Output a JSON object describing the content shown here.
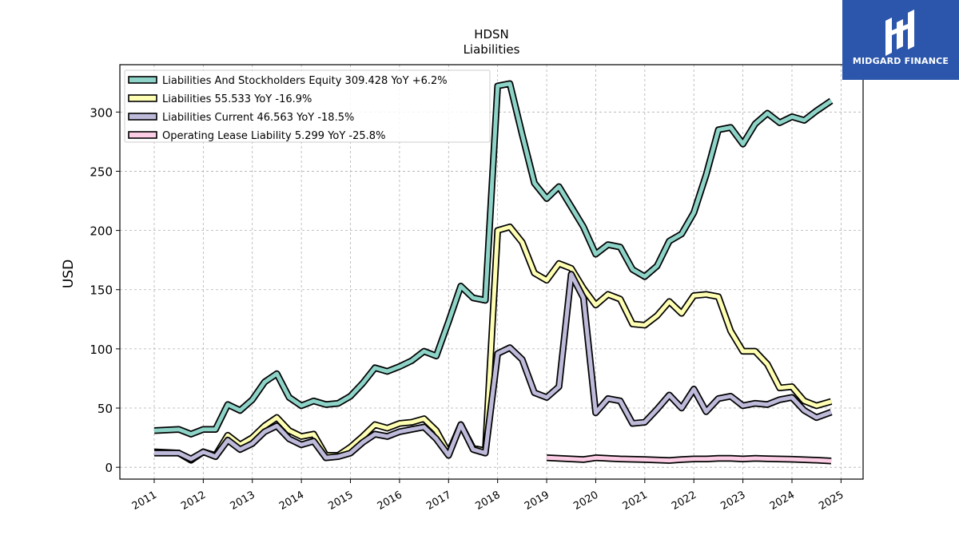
{
  "brand": {
    "name": "MIDGARD FINANCE",
    "color": "#2b56ab"
  },
  "chart_data": {
    "type": "line",
    "title": "HDSN",
    "subtitle": "Liabilities",
    "ylabel": "USD",
    "xlabel": "",
    "ylim": [
      -10,
      340
    ],
    "xlim": [
      2010.3,
      2025.45
    ],
    "yticks": [
      0,
      50,
      100,
      150,
      200,
      250,
      300
    ],
    "xticks": [
      2011,
      2012,
      2013,
      2014,
      2015,
      2016,
      2017,
      2018,
      2019,
      2020,
      2021,
      2022,
      2023,
      2024,
      2025
    ],
    "grid": true,
    "legend_position": "top-left",
    "series": [
      {
        "name": "Liabilities And Stockholders Equity",
        "legend": "Liabilities And Stockholders Equity  309.428 YoY +6.2%",
        "color": "#8dd3c7",
        "points": [
          [
            2011.0,
            31
          ],
          [
            2011.5,
            32
          ],
          [
            2011.75,
            28
          ],
          [
            2012.0,
            32
          ],
          [
            2012.25,
            32
          ],
          [
            2012.5,
            53
          ],
          [
            2012.75,
            48
          ],
          [
            2013.0,
            57
          ],
          [
            2013.25,
            72
          ],
          [
            2013.5,
            79
          ],
          [
            2013.75,
            59
          ],
          [
            2014.0,
            52
          ],
          [
            2014.25,
            56
          ],
          [
            2014.5,
            53
          ],
          [
            2014.75,
            54
          ],
          [
            2015.0,
            60
          ],
          [
            2015.25,
            71
          ],
          [
            2015.5,
            84
          ],
          [
            2015.75,
            81
          ],
          [
            2016.0,
            85
          ],
          [
            2016.25,
            90
          ],
          [
            2016.5,
            98
          ],
          [
            2016.75,
            94
          ],
          [
            2017.0,
            123
          ],
          [
            2017.25,
            153
          ],
          [
            2017.5,
            143
          ],
          [
            2017.75,
            141
          ],
          [
            2018.0,
            322
          ],
          [
            2018.25,
            324
          ],
          [
            2018.5,
            281
          ],
          [
            2018.75,
            240
          ],
          [
            2019.0,
            227
          ],
          [
            2019.25,
            237
          ],
          [
            2019.5,
            220
          ],
          [
            2019.75,
            203
          ],
          [
            2020.0,
            180
          ],
          [
            2020.25,
            188
          ],
          [
            2020.5,
            186
          ],
          [
            2020.75,
            167
          ],
          [
            2021.0,
            161
          ],
          [
            2021.25,
            170
          ],
          [
            2021.5,
            191
          ],
          [
            2021.75,
            197
          ],
          [
            2022.0,
            215
          ],
          [
            2022.25,
            247
          ],
          [
            2022.5,
            285
          ],
          [
            2022.75,
            287
          ],
          [
            2023.0,
            273
          ],
          [
            2023.25,
            290
          ],
          [
            2023.5,
            299
          ],
          [
            2023.75,
            291
          ],
          [
            2024.0,
            296
          ],
          [
            2024.25,
            293
          ],
          [
            2024.5,
            301
          ],
          [
            2024.8,
            309.428
          ]
        ]
      },
      {
        "name": "Liabilities",
        "legend": "Liabilities  55.533 YoY -16.9%",
        "color": "#ffffb3",
        "points": [
          [
            2011.0,
            13
          ],
          [
            2011.5,
            12
          ],
          [
            2011.75,
            6
          ],
          [
            2012.0,
            13
          ],
          [
            2012.25,
            10
          ],
          [
            2012.5,
            27
          ],
          [
            2012.75,
            19
          ],
          [
            2013.0,
            25
          ],
          [
            2013.25,
            35
          ],
          [
            2013.5,
            42
          ],
          [
            2013.75,
            31
          ],
          [
            2014.0,
            26
          ],
          [
            2014.25,
            28
          ],
          [
            2014.5,
            10
          ],
          [
            2014.75,
            10
          ],
          [
            2015.0,
            17
          ],
          [
            2015.25,
            26
          ],
          [
            2015.5,
            36
          ],
          [
            2015.75,
            33
          ],
          [
            2016.0,
            37
          ],
          [
            2016.25,
            38
          ],
          [
            2016.5,
            41
          ],
          [
            2016.75,
            31
          ],
          [
            2017.0,
            12
          ],
          [
            2017.25,
            36
          ],
          [
            2017.5,
            16
          ],
          [
            2017.75,
            14
          ],
          [
            2018.0,
            200
          ],
          [
            2018.25,
            203
          ],
          [
            2018.5,
            190
          ],
          [
            2018.75,
            164
          ],
          [
            2019.0,
            158
          ],
          [
            2019.25,
            172
          ],
          [
            2019.5,
            168
          ],
          [
            2019.75,
            151
          ],
          [
            2020.0,
            137
          ],
          [
            2020.25,
            146
          ],
          [
            2020.5,
            142
          ],
          [
            2020.75,
            121
          ],
          [
            2021.0,
            120
          ],
          [
            2021.25,
            128
          ],
          [
            2021.5,
            140
          ],
          [
            2021.75,
            130
          ],
          [
            2022.0,
            145
          ],
          [
            2022.25,
            146
          ],
          [
            2022.5,
            144
          ],
          [
            2022.75,
            115
          ],
          [
            2023.0,
            98
          ],
          [
            2023.25,
            98
          ],
          [
            2023.5,
            87
          ],
          [
            2023.75,
            67
          ],
          [
            2024.0,
            68
          ],
          [
            2024.25,
            56
          ],
          [
            2024.5,
            52
          ],
          [
            2024.8,
            55.533
          ]
        ]
      },
      {
        "name": "Liabilities Current",
        "legend": "Liabilities Current  46.563 YoY -18.5%",
        "color": "#bebada",
        "points": [
          [
            2011.0,
            12
          ],
          [
            2011.5,
            12
          ],
          [
            2011.75,
            7
          ],
          [
            2012.0,
            13
          ],
          [
            2012.25,
            9
          ],
          [
            2012.5,
            23
          ],
          [
            2012.75,
            15
          ],
          [
            2013.0,
            20
          ],
          [
            2013.25,
            30
          ],
          [
            2013.5,
            35
          ],
          [
            2013.75,
            24
          ],
          [
            2014.0,
            19
          ],
          [
            2014.25,
            22
          ],
          [
            2014.5,
            8
          ],
          [
            2014.75,
            9
          ],
          [
            2015.0,
            12
          ],
          [
            2015.25,
            21
          ],
          [
            2015.5,
            28
          ],
          [
            2015.75,
            26
          ],
          [
            2016.0,
            30
          ],
          [
            2016.25,
            32
          ],
          [
            2016.5,
            34
          ],
          [
            2016.75,
            24
          ],
          [
            2017.0,
            10
          ],
          [
            2017.25,
            36
          ],
          [
            2017.5,
            15
          ],
          [
            2017.75,
            12
          ],
          [
            2018.0,
            96
          ],
          [
            2018.25,
            101
          ],
          [
            2018.5,
            91
          ],
          [
            2018.75,
            63
          ],
          [
            2019.0,
            59
          ],
          [
            2019.25,
            68
          ],
          [
            2019.5,
            163
          ],
          [
            2019.75,
            143
          ],
          [
            2020.0,
            46
          ],
          [
            2020.25,
            58
          ],
          [
            2020.5,
            56
          ],
          [
            2020.75,
            37
          ],
          [
            2021.0,
            38
          ],
          [
            2021.25,
            49
          ],
          [
            2021.5,
            61
          ],
          [
            2021.75,
            50
          ],
          [
            2022.0,
            66
          ],
          [
            2022.25,
            47
          ],
          [
            2022.5,
            58
          ],
          [
            2022.75,
            60
          ],
          [
            2023.0,
            52
          ],
          [
            2023.25,
            54
          ],
          [
            2023.5,
            53
          ],
          [
            2023.75,
            57
          ],
          [
            2024.0,
            59
          ],
          [
            2024.25,
            48
          ],
          [
            2024.5,
            42
          ],
          [
            2024.8,
            46.563
          ]
        ]
      },
      {
        "name": "Operating Lease Liability",
        "legend": "Operating Lease Liability  5.299 YoY -25.8%",
        "color": "#fccde5",
        "points": [
          [
            2019.0,
            8
          ],
          [
            2019.5,
            7
          ],
          [
            2019.75,
            6.5
          ],
          [
            2020.0,
            8
          ],
          [
            2020.5,
            7
          ],
          [
            2021.0,
            6.5
          ],
          [
            2021.5,
            5.8
          ],
          [
            2021.75,
            6.5
          ],
          [
            2022.0,
            7
          ],
          [
            2022.25,
            7
          ],
          [
            2022.5,
            7.5
          ],
          [
            2022.75,
            7.5
          ],
          [
            2023.0,
            7
          ],
          [
            2023.25,
            7.5
          ],
          [
            2023.5,
            7.2
          ],
          [
            2024.0,
            6.8
          ],
          [
            2024.5,
            6
          ],
          [
            2024.8,
            5.299
          ]
        ]
      }
    ]
  }
}
